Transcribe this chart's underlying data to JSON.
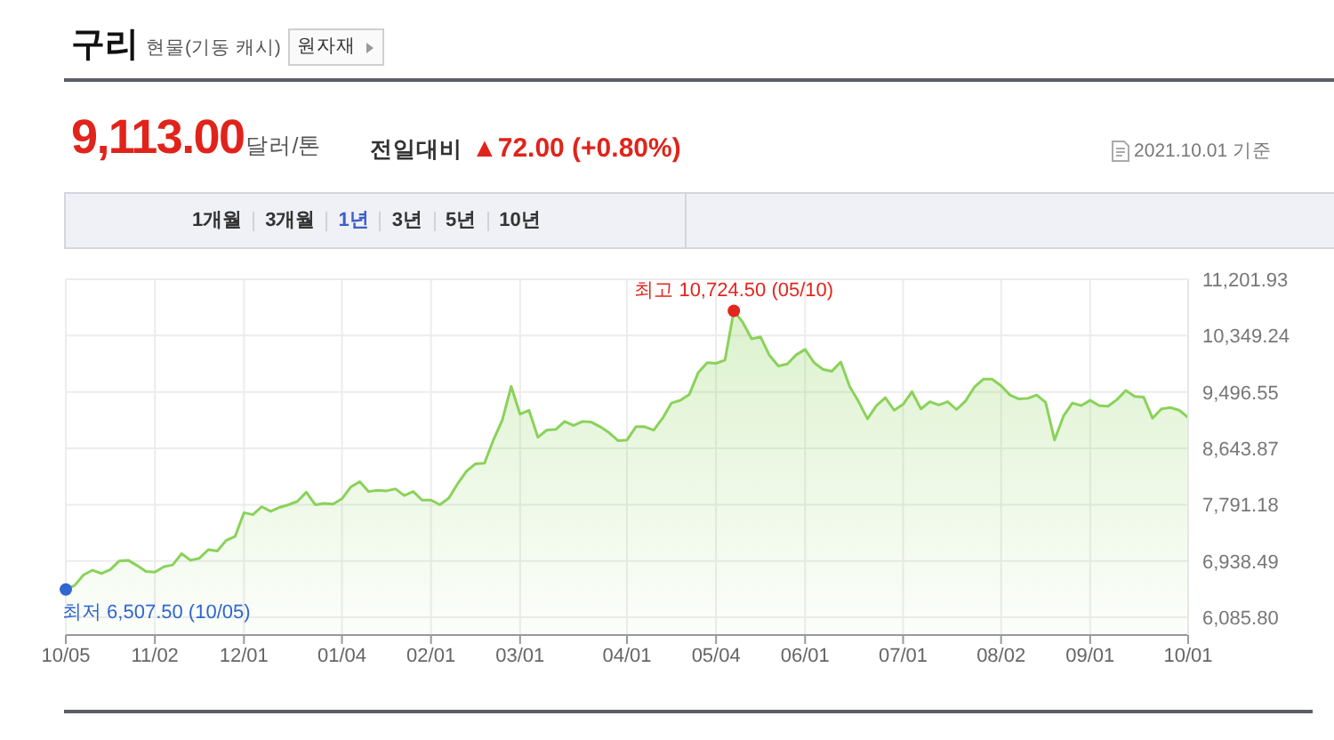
{
  "chart_data": {
    "type": "area",
    "title": "구리",
    "subtitle": "현물(기동 캐시)",
    "categories": [
      "10/05",
      null,
      null,
      null,
      null,
      null,
      null,
      null,
      null,
      null,
      "11/02",
      null,
      null,
      null,
      null,
      null,
      null,
      null,
      null,
      null,
      "12/01",
      null,
      null,
      null,
      null,
      null,
      null,
      null,
      null,
      null,
      null,
      "01/04",
      null,
      null,
      null,
      null,
      null,
      null,
      null,
      null,
      null,
      "02/01",
      null,
      null,
      null,
      null,
      null,
      null,
      null,
      null,
      null,
      "03/01",
      null,
      null,
      null,
      null,
      null,
      null,
      null,
      null,
      null,
      null,
      null,
      "04/01",
      null,
      null,
      null,
      null,
      null,
      null,
      null,
      null,
      null,
      "05/04",
      null,
      null,
      null,
      null,
      null,
      null,
      null,
      null,
      null,
      "06/01",
      null,
      null,
      null,
      null,
      null,
      null,
      null,
      null,
      null,
      null,
      "07/01",
      null,
      null,
      null,
      null,
      null,
      null,
      null,
      null,
      null,
      null,
      "08/02",
      null,
      null,
      null,
      null,
      null,
      null,
      null,
      null,
      null,
      "09/01",
      null,
      null,
      null,
      null,
      null,
      null,
      null,
      null,
      null,
      null,
      "10/01"
    ],
    "values": [
      6507.5,
      6570,
      6730,
      6800,
      6750,
      6810,
      6940,
      6950,
      6870,
      6780,
      6770,
      6850,
      6880,
      7050,
      6950,
      6980,
      7110,
      7090,
      7250,
      7310,
      7670,
      7640,
      7760,
      7690,
      7750,
      7790,
      7840,
      7980,
      7790,
      7810,
      7800,
      7880,
      8060,
      8140,
      7990,
      8010,
      8000,
      8030,
      7930,
      7990,
      7860,
      7860,
      7790,
      7890,
      8110,
      8300,
      8410,
      8420,
      8770,
      9070,
      9580,
      9160,
      9220,
      8810,
      8920,
      8930,
      9050,
      8990,
      9050,
      9040,
      8970,
      8880,
      8760,
      8770,
      8970,
      8970,
      8920,
      9100,
      9330,
      9370,
      9460,
      9790,
      9940,
      9930,
      9980,
      10724.5,
      10550,
      10300,
      10330,
      10050,
      9890,
      9920,
      10060,
      10140,
      9940,
      9840,
      9810,
      9950,
      9580,
      9350,
      9090,
      9290,
      9410,
      9220,
      9310,
      9500,
      9240,
      9350,
      9300,
      9350,
      9230,
      9360,
      9570,
      9690,
      9690,
      9590,
      9450,
      9390,
      9400,
      9450,
      9340,
      8770,
      9130,
      9330,
      9290,
      9370,
      9290,
      9280,
      9380,
      9520,
      9430,
      9420,
      9100,
      9240,
      9260,
      9220,
      9110
    ],
    "color": "#8ad25a",
    "ylim": [
      5818,
      11201.93
    ],
    "yticks": [
      {
        "value": 6085.8,
        "label": "6,085.80"
      },
      {
        "value": 6938.49,
        "label": "6,938.49"
      },
      {
        "value": 7791.18,
        "label": "7,791.18"
      },
      {
        "value": 8643.87,
        "label": "8,643.87"
      },
      {
        "value": 9496.55,
        "label": "9,496.55"
      },
      {
        "value": 10349.24,
        "label": "10,349.24"
      },
      {
        "value": 11201.93,
        "label": "11,201.93"
      }
    ],
    "grid": true,
    "annotations": [
      "원자재",
      "9,113.00",
      "달러/톤",
      "전일대비",
      "▲72.00 (+0.80%)",
      "2021.10.01 기준",
      "1개월",
      "3개월",
      "1년",
      "3년",
      "5년",
      "10년",
      {
        "text": "최고 10,724.50 (05/10)",
        "y": 10724.5
      },
      {
        "text": "최저 6,507.50 (10/05)",
        "x": "10/05",
        "y": 6507.5
      }
    ]
  }
}
